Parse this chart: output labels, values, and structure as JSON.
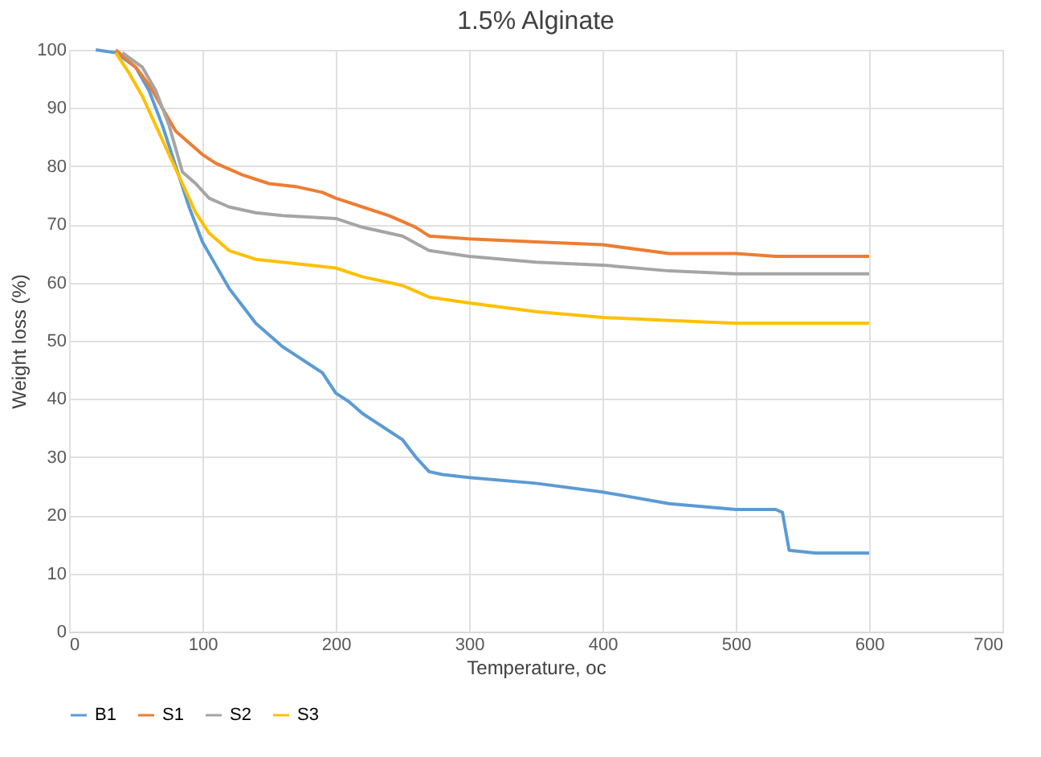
{
  "chart_data": {
    "type": "line",
    "title": "1.5% Alginate",
    "xlabel": "Temperature, oc",
    "ylabel": "Weight loss (%)",
    "xlim": [
      0,
      700
    ],
    "xticks": [
      0,
      100,
      200,
      300,
      400,
      500,
      600,
      700
    ],
    "ylim": [
      0,
      100
    ],
    "yticks": [
      0,
      10,
      20,
      30,
      40,
      50,
      60,
      70,
      80,
      90,
      100
    ],
    "grid": true,
    "legend": "bottom",
    "marker": "none",
    "line_style": "solid",
    "series": [
      {
        "name": "B1",
        "color": "#5b9bd5",
        "x": [
          20,
          35,
          50,
          60,
          70,
          80,
          90,
          100,
          110,
          120,
          130,
          140,
          150,
          160,
          170,
          180,
          190,
          200,
          210,
          220,
          230,
          240,
          250,
          260,
          270,
          280,
          300,
          350,
          400,
          450,
          500,
          530,
          535,
          540,
          560,
          600
        ],
        "values": [
          100,
          99.5,
          97,
          93,
          87,
          80,
          73,
          67,
          63,
          59,
          56,
          53,
          51,
          49,
          47.5,
          46,
          44.5,
          41,
          39.5,
          37.5,
          36,
          34.5,
          33,
          30,
          27.5,
          27,
          26.5,
          25.5,
          24,
          22,
          21,
          21,
          20.5,
          14,
          13.5,
          13.5
        ]
      },
      {
        "name": "S1",
        "color": "#ed7d31",
        "x": [
          35,
          50,
          60,
          70,
          80,
          90,
          100,
          110,
          120,
          130,
          150,
          170,
          190,
          200,
          220,
          240,
          260,
          270,
          300,
          350,
          400,
          450,
          500,
          530,
          600
        ],
        "values": [
          100,
          97,
          94,
          90,
          86,
          84,
          82,
          80.5,
          79.5,
          78.5,
          77,
          76.5,
          75.5,
          74.5,
          73,
          71.5,
          69.5,
          68,
          67.5,
          67,
          66.5,
          65,
          65,
          64.5,
          64.5
        ]
      },
      {
        "name": "S2",
        "color": "#a5a5a5",
        "x": [
          40,
          55,
          65,
          75,
          85,
          95,
          105,
          120,
          140,
          160,
          200,
          220,
          250,
          270,
          300,
          350,
          400,
          450,
          500,
          600
        ],
        "values": [
          99.5,
          97,
          93,
          87,
          79,
          77,
          74.5,
          73,
          72,
          71.5,
          71,
          69.5,
          68,
          65.5,
          64.5,
          63.5,
          63,
          62,
          61.5,
          61.5
        ]
      },
      {
        "name": "S3",
        "color": "#ffc000",
        "x": [
          35,
          45,
          55,
          65,
          75,
          85,
          95,
          105,
          120,
          140,
          160,
          200,
          220,
          250,
          270,
          300,
          350,
          400,
          450,
          500,
          600
        ],
        "values": [
          99.5,
          96,
          92,
          87,
          82,
          77,
          72,
          68.5,
          65.5,
          64,
          63.5,
          62.5,
          61,
          59.5,
          57.5,
          56.5,
          55,
          54,
          53.5,
          53,
          53
        ]
      }
    ]
  }
}
